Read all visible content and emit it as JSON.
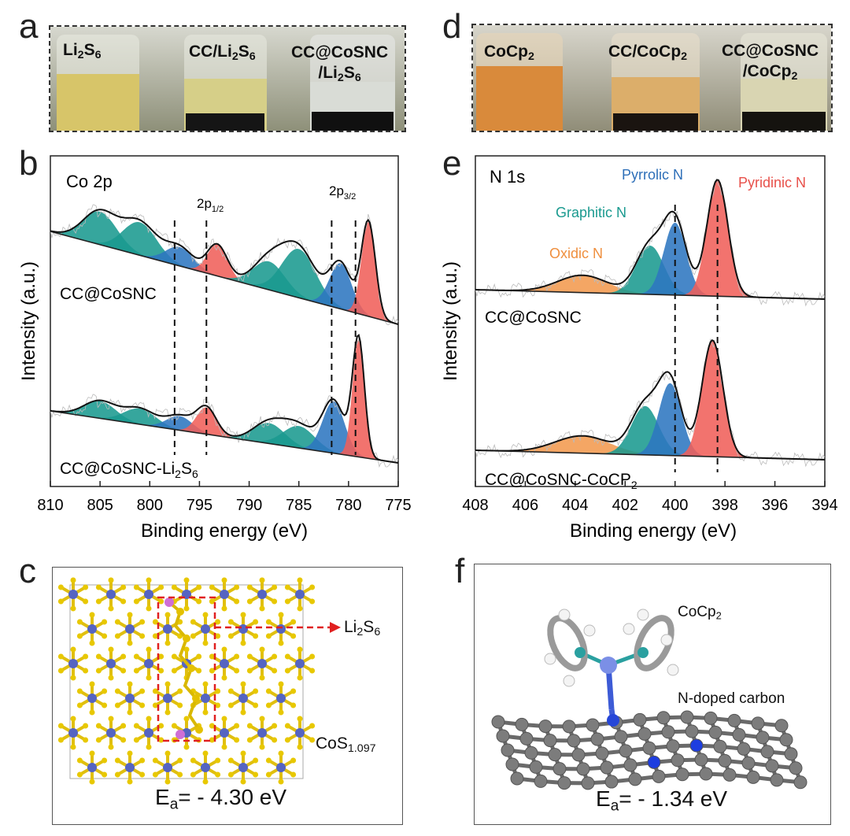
{
  "panels": {
    "a": {
      "letter": "a",
      "vials": [
        {
          "main": "Li",
          "sub": "2",
          "main2": "S",
          "sub2": "6",
          "rest": ""
        },
        {
          "main": "CC/Li",
          "sub": "2",
          "main2": "S",
          "sub2": "6",
          "rest": ""
        },
        {
          "line1": "CC@CoSNC",
          "main": "/Li",
          "sub": "2",
          "main2": "S",
          "sub2": "6"
        }
      ]
    },
    "d": {
      "letter": "d",
      "vials": [
        {
          "main": "CoCp",
          "sub": "2"
        },
        {
          "main": "CC/CoCp",
          "sub": "2"
        },
        {
          "line1": "CC@CoSNC",
          "main": "/CoCp",
          "sub": "2"
        }
      ]
    },
    "b": {
      "letter": "b",
      "title": "Co 2p",
      "peak_label_a": "2p",
      "peak_label_a_sub": "1/2",
      "peak_label_b": "2p",
      "peak_label_b_sub": "3/2",
      "trace_top": "CC@CoSNC",
      "trace_bottom_main": "CC@CoSNC-Li",
      "trace_bottom_sub1": "2",
      "trace_bottom_s": "S",
      "trace_bottom_sub2": "6",
      "xlabel": "Binding energy (eV)",
      "ylabel": "Intensity (a.u.)"
    },
    "e": {
      "letter": "e",
      "title": "N 1s",
      "label_pyrrolic": "Pyrrolic N",
      "label_pyridinic": "Pyridinic N",
      "label_graphitic": "Graphitic N",
      "label_oxidic": "Oxidic N",
      "trace_top": "CC@CoSNC",
      "trace_bottom_main": "CC@CoSNC-CoCP",
      "trace_bottom_sub": "2",
      "xlabel": "Binding energy (eV)",
      "ylabel": "Intensity (a.u.)"
    },
    "c": {
      "letter": "c",
      "arrow_main": "Li",
      "arrow_sub1": "2",
      "arrow_s": "S",
      "arrow_sub2": "6",
      "material_main": "CoS",
      "material_sub": "1.097",
      "ea_main": "E",
      "ea_sub": "a",
      "ea_value": "= - 4.30 eV"
    },
    "f": {
      "letter": "f",
      "molecule_main": "CoCp",
      "molecule_sub": "2",
      "support": "N-doped carbon",
      "ea_main": "E",
      "ea_sub": "a",
      "ea_value": "= - 1.34 eV"
    }
  },
  "chart_data": [
    {
      "type": "line",
      "title": "Co 2p",
      "xlabel": "Binding energy (eV)",
      "ylabel": "Intensity (a.u.)",
      "xlim": [
        810,
        775
      ],
      "xticks": [
        810,
        805,
        800,
        795,
        790,
        785,
        780,
        775
      ],
      "series": [
        {
          "name": "CC@CoSNC",
          "peaks": [
            {
              "center": 805,
              "color": "#1a9a8f"
            },
            {
              "center": 801,
              "color": "#1a9a8f"
            },
            {
              "center": 797,
              "color": "#2e76c0"
            },
            {
              "center": 793.2,
              "color": "#f0605a"
            },
            {
              "center": 788,
              "color": "#1a9a8f"
            },
            {
              "center": 785,
              "color": "#1a9a8f"
            },
            {
              "center": 780.8,
              "color": "#2e76c0"
            },
            {
              "center": 778,
              "color": "#f0605a"
            }
          ]
        },
        {
          "name": "CC@CoSNC-Li2S6",
          "peaks": [
            {
              "center": 805,
              "color": "#1a9a8f"
            },
            {
              "center": 801,
              "color": "#1a9a8f"
            },
            {
              "center": 797,
              "color": "#2e76c0"
            },
            {
              "center": 794.3,
              "color": "#f0605a"
            },
            {
              "center": 788,
              "color": "#1a9a8f"
            },
            {
              "center": 785,
              "color": "#1a9a8f"
            },
            {
              "center": 781.5,
              "color": "#2e76c0"
            },
            {
              "center": 779,
              "color": "#f0605a"
            }
          ]
        }
      ],
      "reference_lines": [
        797.5,
        794.3,
        781.7,
        779.3
      ]
    },
    {
      "type": "line",
      "title": "N 1s",
      "xlabel": "Binding energy (eV)",
      "ylabel": "Intensity (a.u.)",
      "xlim": [
        408,
        394
      ],
      "xticks": [
        408,
        406,
        404,
        402,
        400,
        398,
        396,
        394
      ],
      "series": [
        {
          "name": "CC@CoSNC",
          "peaks": [
            {
              "label": "Oxidic N",
              "center": 403.7,
              "color": "#f39a4e"
            },
            {
              "label": "Graphitic N",
              "center": 401,
              "color": "#1a9a8f"
            },
            {
              "label": "Pyrrolic N",
              "center": 400.0,
              "color": "#2e76c0"
            },
            {
              "label": "Pyridinic N",
              "center": 398.3,
              "color": "#f0605a"
            }
          ]
        },
        {
          "name": "CC@CoSNC-CoCP2",
          "peaks": [
            {
              "label": "Oxidic N",
              "center": 403.7,
              "color": "#f39a4e"
            },
            {
              "label": "Graphitic N",
              "center": 401.2,
              "color": "#1a9a8f"
            },
            {
              "label": "Pyrrolic N",
              "center": 400.2,
              "color": "#2e76c0"
            },
            {
              "label": "Pyridinic N",
              "center": 398.5,
              "color": "#f0605a"
            }
          ]
        }
      ],
      "reference_lines": [
        400.0,
        398.3
      ]
    }
  ]
}
